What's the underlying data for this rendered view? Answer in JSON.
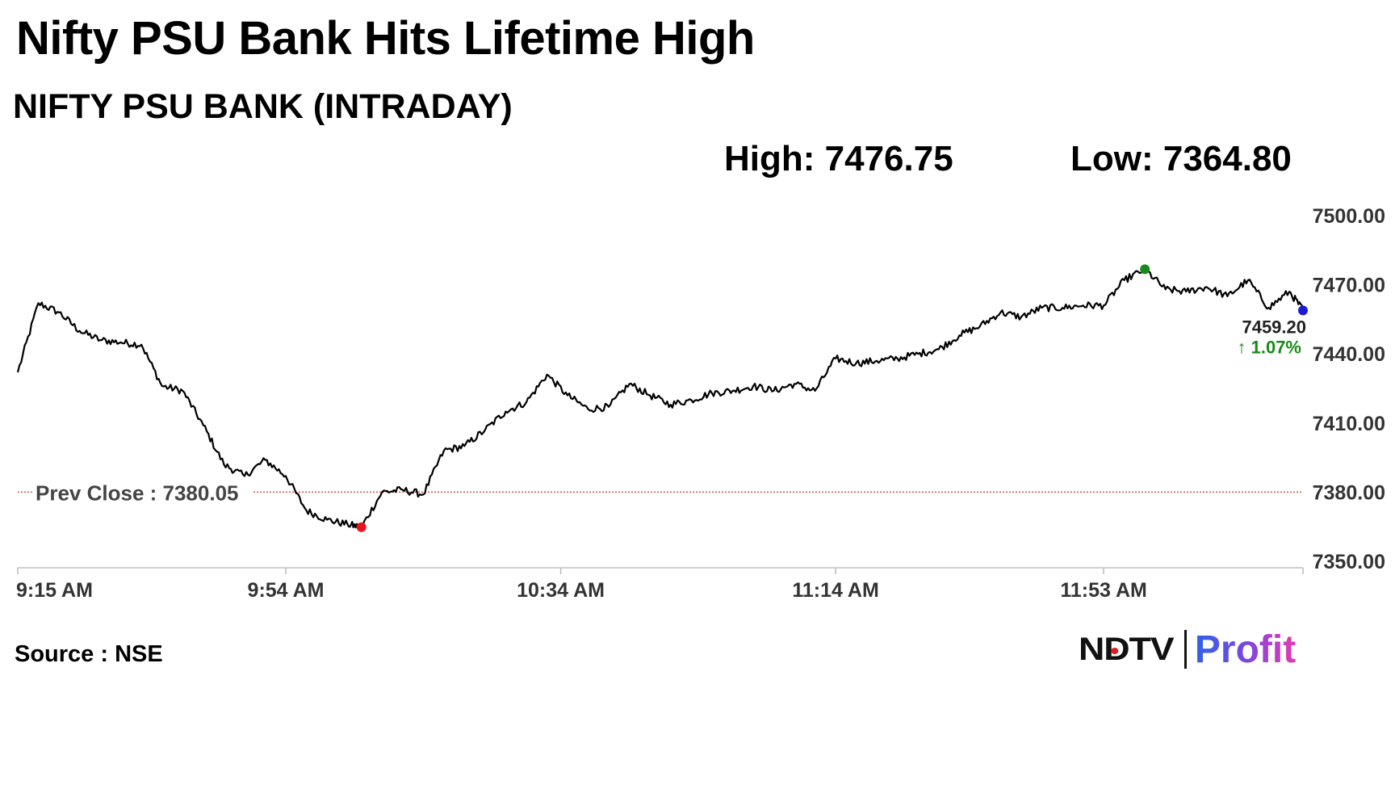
{
  "headline": "Nifty PSU Bank Hits Lifetime High",
  "subtitle": "NIFTY PSU BANK (INTRADAY)",
  "stats": {
    "high": "High: 7476.75",
    "low": "Low: 7364.80"
  },
  "source": "Source : NSE",
  "logo": {
    "brand": "NDTV",
    "product": "Profit"
  },
  "colors": {
    "line": "#000000",
    "prev_close_line": "#c0392b",
    "high_marker": "#1a8a1a",
    "low_marker": "#e8141b",
    "last_marker": "#1a1ad8",
    "change_text": "#178a17"
  },
  "chart_data": {
    "type": "line",
    "title": "NIFTY PSU BANK (INTRADAY)",
    "xlabel": "",
    "ylabel": "",
    "ylim": [
      7350,
      7500
    ],
    "x_range": [
      "9:15 AM",
      "12:22 PM"
    ],
    "y_ticks": [
      "7500.00",
      "7470.00",
      "7440.00",
      "7410.00",
      "7380.00",
      "7350.00"
    ],
    "x_ticks": [
      "9:15 AM",
      "9:54 AM",
      "10:34 AM",
      "11:14 AM",
      "11:53 AM"
    ],
    "grid": false,
    "legend": "none",
    "reference_line": {
      "label": "Prev Close : 7380.05",
      "value": 7380.05
    },
    "high_point": {
      "time": "11:59 AM",
      "value": 7476.75
    },
    "low_point": {
      "time": "10:05 AM",
      "value": 7364.8
    },
    "last": {
      "time": "12:22 PM",
      "value": 7459.2,
      "value_label": "7459.20",
      "change_label": "↑ 1.07%"
    },
    "series": [
      {
        "x": [
          "9:15 AM",
          "9:18 AM",
          "9:21 AM",
          "9:24 AM",
          "9:27 AM",
          "9:30 AM",
          "9:33 AM",
          "9:36 AM",
          "9:39 AM",
          "9:42 AM",
          "9:45 AM",
          "9:48 AM",
          "9:51 AM",
          "9:54 AM",
          "9:57 AM",
          "10:00 AM",
          "10:03 AM",
          "10:05 AM",
          "10:08 AM",
          "10:11 AM",
          "10:14 AM",
          "10:17 AM",
          "10:20 AM",
          "10:23 AM",
          "10:26 AM",
          "10:29 AM",
          "10:32 AM",
          "10:35 AM",
          "10:38 AM",
          "10:41 AM",
          "10:44 AM",
          "10:47 AM",
          "10:50 AM",
          "10:53 AM",
          "10:56 AM",
          "10:59 AM",
          "11:02 AM",
          "11:05 AM",
          "11:08 AM",
          "11:11 AM",
          "11:14 AM",
          "11:17 AM",
          "11:20 AM",
          "11:23 AM",
          "11:26 AM",
          "11:29 AM",
          "11:32 AM",
          "11:35 AM",
          "11:38 AM",
          "11:41 AM",
          "11:44 AM",
          "11:47 AM",
          "11:50 AM",
          "11:53 AM",
          "11:56 AM",
          "11:59 AM",
          "12:02 PM",
          "12:05 PM",
          "12:08 PM",
          "12:11 PM",
          "12:14 PM",
          "12:17 PM",
          "12:20 PM",
          "12:22 PM"
        ],
        "values": [
          7432,
          7462,
          7458,
          7450,
          7446,
          7445,
          7444,
          7426,
          7424,
          7409,
          7392,
          7387,
          7394,
          7387,
          7372,
          7368,
          7366,
          7364.8,
          7380,
          7381,
          7379,
          7398,
          7400,
          7407,
          7415,
          7419,
          7431,
          7422,
          7416,
          7417,
          7427,
          7422,
          7418,
          7420,
          7423,
          7424,
          7426,
          7424,
          7427,
          7424,
          7438,
          7436,
          7437,
          7438,
          7440,
          7442,
          7448,
          7452,
          7458,
          7456,
          7460,
          7460,
          7461,
          7461,
          7472,
          7476.75,
          7468,
          7467,
          7469,
          7465,
          7472,
          7460,
          7467,
          7459.2
        ]
      }
    ]
  }
}
